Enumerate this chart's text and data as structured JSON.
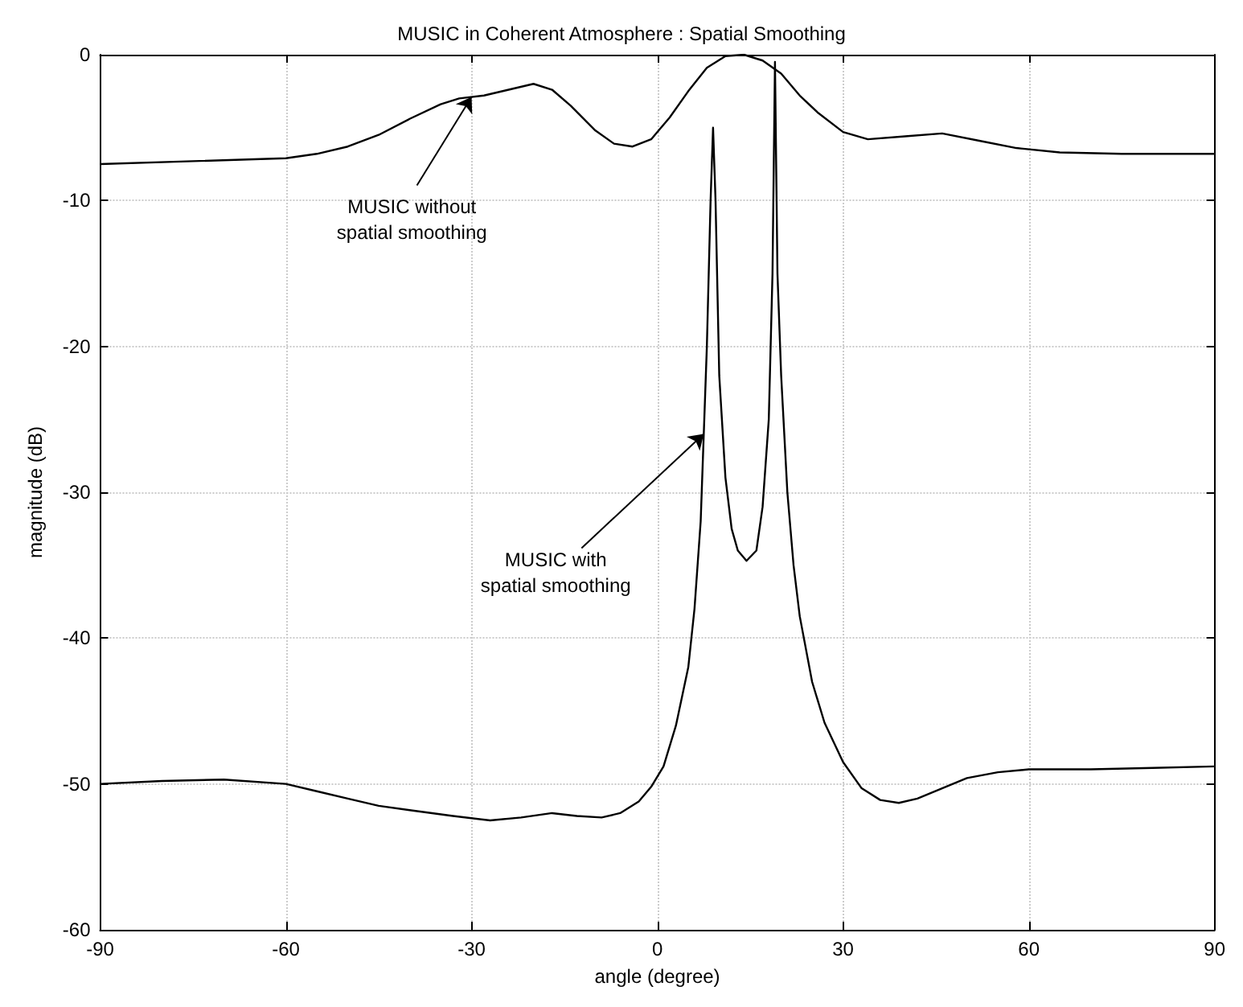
{
  "chart_data": {
    "type": "line",
    "title": "MUSIC in Coherent Atmosphere : Spatial Smoothing",
    "xlabel": "angle (degree)",
    "ylabel": "magnitude (dB)",
    "xlim": [
      -90,
      90
    ],
    "xticks": [
      -90,
      -60,
      -30,
      0,
      30,
      60,
      90
    ],
    "ylim": [
      -60,
      0
    ],
    "yticks": [
      -60,
      -50,
      -40,
      -30,
      -20,
      -10,
      0
    ],
    "grid": true,
    "marker": "none",
    "line_style": "solid",
    "series": [
      {
        "color": "#000000",
        "x": [
          -90,
          -75,
          -60,
          -55,
          -50,
          -45,
          -40,
          -35,
          -32,
          -28,
          -24,
          -20,
          -17,
          -14,
          -10,
          -7,
          -4,
          -1,
          2,
          5,
          8,
          11,
          14,
          17,
          20,
          23,
          26,
          30,
          34,
          40,
          46,
          52,
          58,
          65,
          75,
          90
        ],
        "values": [
          -7.5,
          -7.3,
          -7.1,
          -6.8,
          -6.3,
          -5.5,
          -4.4,
          -3.4,
          -3,
          -2.8,
          -2.4,
          -2,
          -2.4,
          -3.5,
          -5.2,
          -6.1,
          -6.3,
          -5.8,
          -4.3,
          -2.5,
          -0.9,
          -0.1,
          0,
          -0.4,
          -1.3,
          -2.8,
          -4,
          -5.3,
          -5.8,
          -5.6,
          -5.4,
          -5.9,
          -6.4,
          -6.7,
          -6.8,
          -6.8
        ]
      },
      {
        "color": "#000000",
        "x": [
          -90,
          -80,
          -70,
          -60,
          -55,
          -50,
          -45,
          -40,
          -33,
          -27,
          -22,
          -17,
          -13,
          -9,
          -6,
          -3,
          -1,
          1,
          3,
          5,
          6,
          7,
          8,
          8.6,
          9,
          9.4,
          10,
          11,
          12,
          13,
          14.4,
          16,
          17,
          18,
          18.6,
          19,
          19.4,
          20,
          21,
          22,
          23,
          25,
          27,
          30,
          33,
          36,
          39,
          42,
          46,
          50,
          55,
          60,
          70,
          80,
          90
        ],
        "values": [
          -50,
          -49.8,
          -49.7,
          -50,
          -50.5,
          -51,
          -51.5,
          -51.8,
          -52.2,
          -52.5,
          -52.3,
          -52,
          -52.2,
          -52.3,
          -52,
          -51.2,
          -50.2,
          -48.8,
          -46,
          -42,
          -38,
          -32,
          -20,
          -10,
          -5,
          -10,
          -22,
          -29,
          -32.5,
          -34,
          -34.7,
          -34,
          -31,
          -25,
          -15,
          -0.5,
          -15,
          -22,
          -30,
          -35,
          -38.5,
          -43,
          -45.8,
          -48.5,
          -50.3,
          -51.1,
          -51.3,
          -51,
          -50.3,
          -49.6,
          -49.2,
          -49,
          -49,
          -48.9,
          -48.8
        ]
      }
    ],
    "annotations": [
      {
        "text": "MUSIC without\nspatial smoothing",
        "x": -30,
        "y": -2.9
      },
      {
        "text": "MUSIC with\nspatial smoothing",
        "x": 7.5,
        "y": -26
      }
    ]
  }
}
